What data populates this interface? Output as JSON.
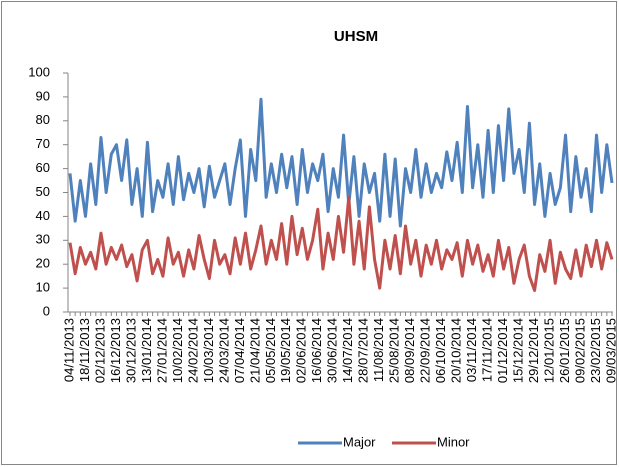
{
  "chart_data": {
    "type": "line",
    "title": "UHSM",
    "categories": [
      "04/11/2013",
      null,
      null,
      "18/11/2013",
      null,
      null,
      "02/12/2013",
      null,
      null,
      "16/12/2013",
      null,
      null,
      "30/12/2013",
      null,
      null,
      "13/01/2014",
      null,
      null,
      "27/01/2014",
      null,
      null,
      "10/02/2014",
      null,
      null,
      "24/02/2014",
      null,
      null,
      "10/03/2014",
      null,
      null,
      "24/03/2014",
      null,
      null,
      "07/04/2014",
      null,
      null,
      "21/04/2014",
      null,
      null,
      "05/05/2014",
      null,
      null,
      "19/05/2014",
      null,
      null,
      "02/06/2014",
      null,
      null,
      "16/06/2014",
      null,
      null,
      "30/06/2014",
      null,
      null,
      "14/07/2014",
      null,
      null,
      "28/07/2014",
      null,
      null,
      "11/08/2014",
      null,
      null,
      "25/08/2014",
      null,
      null,
      "08/09/2014",
      null,
      null,
      "22/09/2014",
      null,
      null,
      "06/10/2014",
      null,
      null,
      "20/10/2014",
      null,
      null,
      "03/11/2014",
      null,
      null,
      "17/11/2014",
      null,
      null,
      "01/12/2014",
      null,
      null,
      "15/12/2014",
      null,
      null,
      "29/12/2014",
      null,
      null,
      "12/01/2015",
      null,
      null,
      "26/01/2015",
      null,
      null,
      "09/02/2015",
      null,
      null,
      "23/02/2015",
      null,
      null,
      "09/03/2015"
    ],
    "series": [
      {
        "name": "Major",
        "color": "#4f81bd",
        "values": [
          58,
          38,
          55,
          40,
          62,
          45,
          73,
          50,
          66,
          70,
          55,
          72,
          45,
          60,
          40,
          71,
          42,
          55,
          48,
          62,
          45,
          65,
          47,
          58,
          50,
          60,
          44,
          61,
          48,
          55,
          62,
          45,
          60,
          72,
          40,
          68,
          55,
          89,
          48,
          62,
          50,
          66,
          52,
          65,
          45,
          68,
          50,
          62,
          55,
          66,
          42,
          60,
          48,
          74,
          45,
          65,
          40,
          62,
          50,
          58,
          38,
          66,
          40,
          64,
          36,
          60,
          50,
          68,
          48,
          62,
          50,
          58,
          52,
          67,
          55,
          71,
          50,
          86,
          52,
          70,
          48,
          76,
          50,
          78,
          55,
          85,
          58,
          68,
          50,
          79,
          45,
          62,
          40,
          58,
          45,
          52,
          74,
          42,
          65,
          48,
          60,
          42,
          74,
          50,
          70,
          54
        ]
      },
      {
        "name": "Minor",
        "color": "#c0504d",
        "values": [
          29,
          16,
          27,
          20,
          25,
          18,
          33,
          20,
          27,
          22,
          28,
          19,
          24,
          13,
          26,
          30,
          16,
          22,
          15,
          31,
          20,
          25,
          15,
          26,
          18,
          32,
          22,
          14,
          30,
          20,
          24,
          16,
          31,
          20,
          33,
          18,
          26,
          36,
          20,
          30,
          22,
          37,
          20,
          40,
          24,
          35,
          22,
          30,
          43,
          18,
          33,
          22,
          40,
          25,
          48,
          20,
          38,
          18,
          44,
          22,
          10,
          30,
          18,
          32,
          16,
          36,
          20,
          30,
          15,
          28,
          20,
          30,
          18,
          26,
          22,
          29,
          15,
          30,
          20,
          28,
          17,
          24,
          15,
          30,
          18,
          27,
          12,
          22,
          28,
          15,
          9,
          24,
          17,
          30,
          12,
          25,
          18,
          14,
          26,
          15,
          28,
          19,
          30,
          18,
          29,
          22
        ]
      }
    ],
    "ylim": [
      0,
      100
    ],
    "yticks": [
      0,
      10,
      20,
      30,
      40,
      50,
      60,
      70,
      80,
      90,
      100
    ],
    "grid": false,
    "legend": "bottom"
  }
}
